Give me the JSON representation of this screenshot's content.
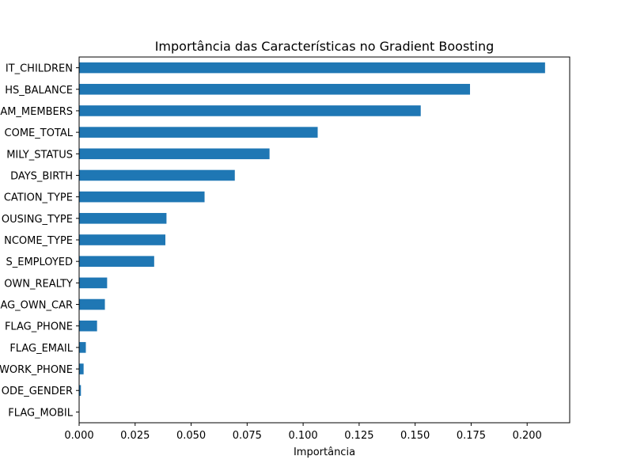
{
  "chart_data": {
    "type": "bar",
    "orientation": "horizontal",
    "title": "Importância das Características no Gradient Boosting",
    "xlabel": "Importância",
    "ylabel": "",
    "categories": [
      "IT_CHILDREN",
      "HS_BALANCE",
      "AM_MEMBERS",
      "COME_TOTAL",
      "MILY_STATUS",
      "DAYS_BIRTH",
      "CATION_TYPE",
      "OUSING_TYPE",
      "NCOME_TYPE",
      "S_EMPLOYED",
      "OWN_REALTY",
      "AG_OWN_CAR",
      "FLAG_PHONE",
      "FLAG_EMAIL",
      "WORK_PHONE",
      "ODE_GENDER",
      "FLAG_MOBIL"
    ],
    "values": [
      0.208,
      0.1745,
      0.1525,
      0.1065,
      0.085,
      0.0695,
      0.056,
      0.039,
      0.0385,
      0.0335,
      0.0125,
      0.0115,
      0.008,
      0.003,
      0.002,
      0.0008,
      0.0
    ],
    "xlim": [
      0,
      0.219
    ],
    "xticks": [
      "0.000",
      "0.025",
      "0.050",
      "0.075",
      "0.100",
      "0.125",
      "0.150",
      "0.175",
      "0.200"
    ],
    "xtick_values": [
      0,
      0.025,
      0.05,
      0.075,
      0.1,
      0.125,
      0.15,
      0.175,
      0.2
    ],
    "bar_color": "#1f77b4",
    "grid": false,
    "legend": false
  }
}
